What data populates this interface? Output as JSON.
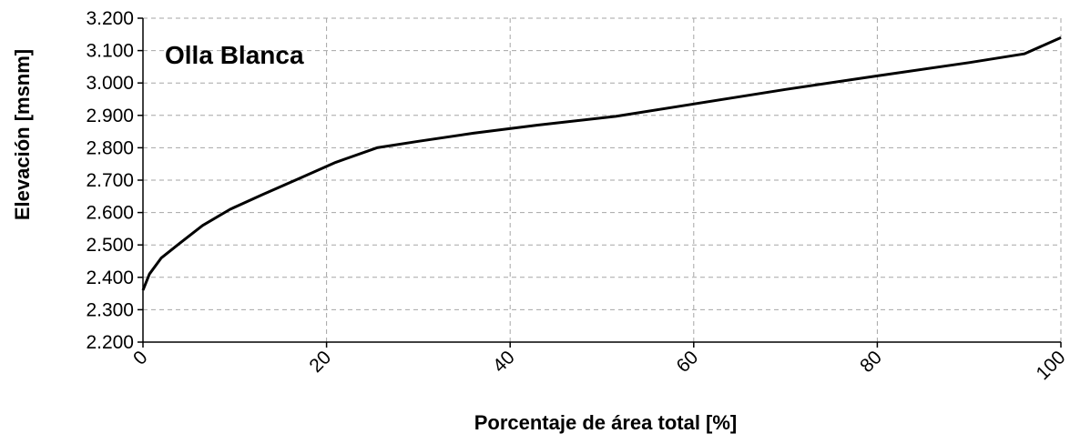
{
  "chart_data": {
    "type": "line",
    "title": "Olla Blanca",
    "xlabel": "Porcentaje de área total [%]",
    "ylabel": "Elevación [msnm]",
    "xlim": [
      0,
      100
    ],
    "ylim": [
      2200,
      3200
    ],
    "x_ticks": [
      0,
      20,
      40,
      60,
      80,
      100
    ],
    "x_tick_labels": [
      "0",
      "20",
      "40",
      "60",
      "80",
      "100"
    ],
    "y_ticks": [
      2200,
      2300,
      2400,
      2500,
      2600,
      2700,
      2800,
      2900,
      3000,
      3100,
      3200
    ],
    "y_tick_labels": [
      "2.200",
      "2.300",
      "2.400",
      "2.500",
      "2.600",
      "2.700",
      "2.800",
      "2.900",
      "3.000",
      "3.100",
      "3.200"
    ],
    "grid": true,
    "legend": "none",
    "series": [
      {
        "x": [
          0,
          0.7,
          2,
          4,
          6.5,
          9.5,
          13,
          17,
          21,
          25.5,
          30,
          36,
          43,
          51.5,
          60,
          70,
          80,
          90,
          96,
          100
        ],
        "y": [
          2360,
          2410,
          2460,
          2505,
          2560,
          2610,
          2655,
          2705,
          2755,
          2800,
          2820,
          2845,
          2870,
          2897,
          2935,
          2980,
          3022,
          3063,
          3090,
          3140
        ],
        "color": "#000000"
      }
    ]
  }
}
